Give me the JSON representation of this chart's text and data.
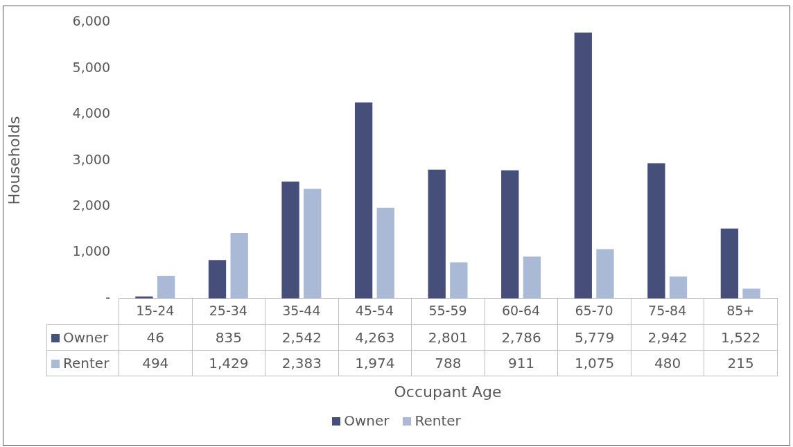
{
  "chart_data": {
    "type": "bar",
    "xlabel": "Occupant Age",
    "ylabel": "Households",
    "categories": [
      "15-24",
      "25-34",
      "35-44",
      "45-54",
      "55-59",
      "60-64",
      "65-70",
      "75-84",
      "85+"
    ],
    "series": [
      {
        "name": "Owner",
        "color": "#464f79",
        "values": [
          46,
          835,
          2542,
          4263,
          2801,
          2786,
          5779,
          2942,
          1522
        ],
        "value_labels": [
          "46",
          "835",
          "2,542",
          "4,263",
          "2,801",
          "2,786",
          "5,779",
          "2,942",
          "1,522"
        ]
      },
      {
        "name": "Renter",
        "color": "#a9b9d6",
        "values": [
          494,
          1429,
          2383,
          1974,
          788,
          911,
          1075,
          480,
          215
        ],
        "value_labels": [
          "494",
          "1,429",
          "2,383",
          "1,974",
          "788",
          "911",
          "1,075",
          "480",
          "215"
        ]
      }
    ],
    "ylim": [
      0,
      6000
    ],
    "yticks": [
      {
        "value": 0,
        "label": "-"
      },
      {
        "value": 1000,
        "label": "1,000"
      },
      {
        "value": 2000,
        "label": "2,000"
      },
      {
        "value": 3000,
        "label": "3,000"
      },
      {
        "value": 4000,
        "label": "4,000"
      },
      {
        "value": 5000,
        "label": "5,000"
      },
      {
        "value": 6000,
        "label": "6,000"
      }
    ],
    "legend": "bottom",
    "grid": false
  }
}
